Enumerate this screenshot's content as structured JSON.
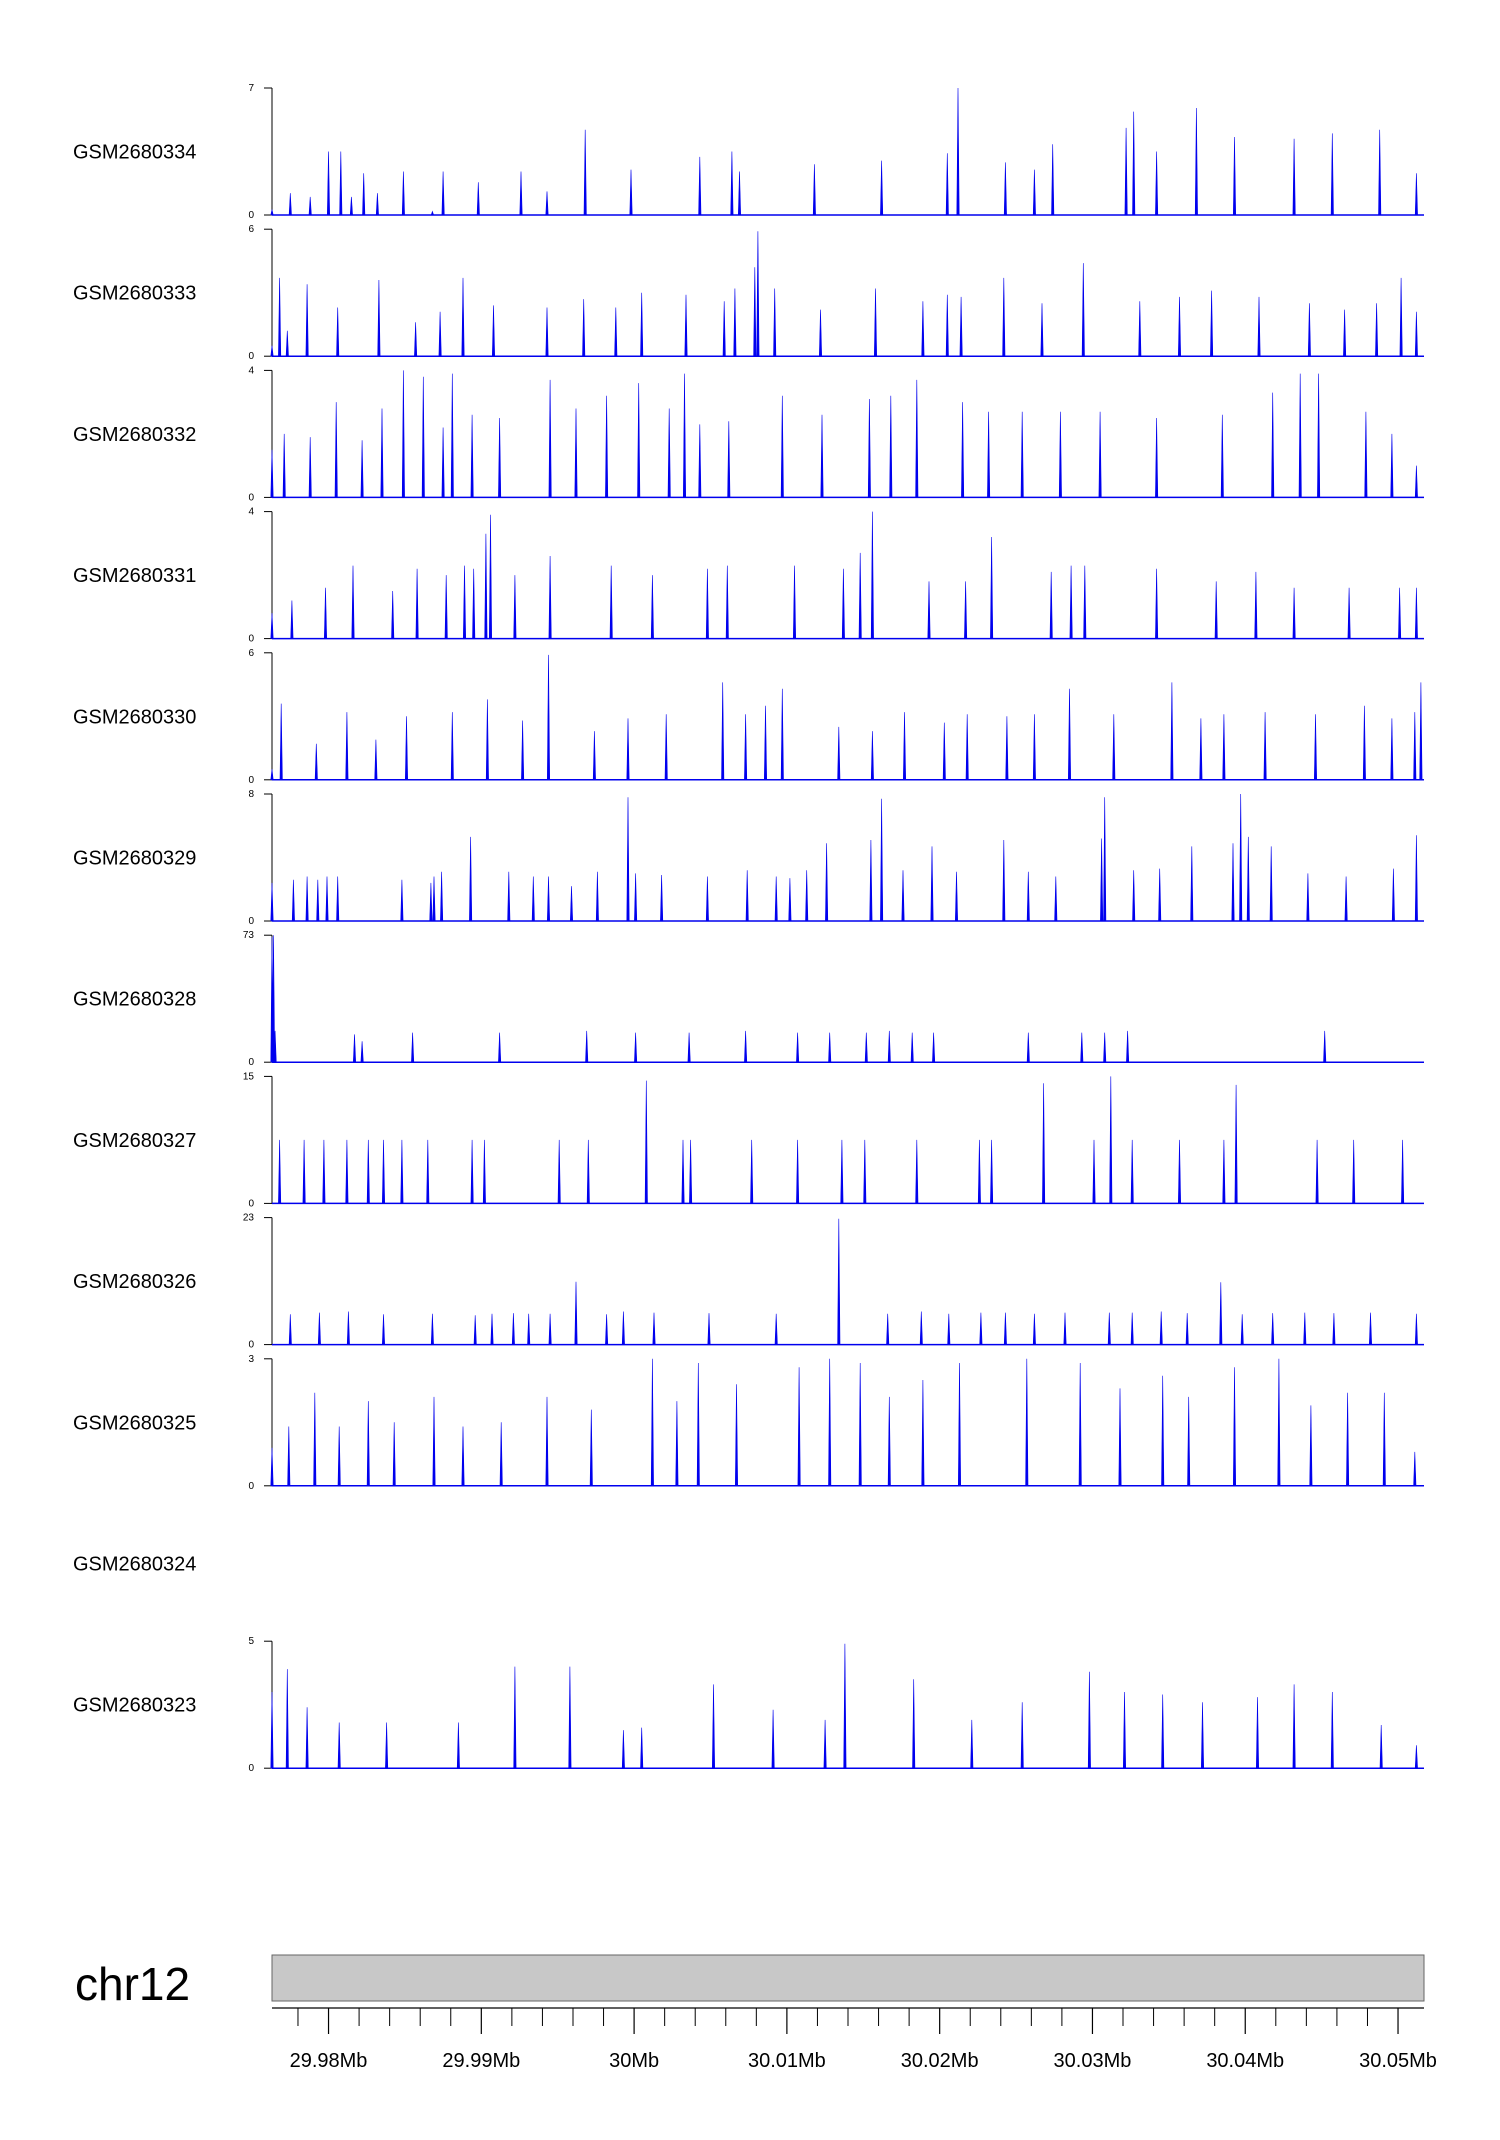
{
  "chart_data": {
    "type": "area",
    "chromosome": "chr12",
    "xlim": [
      29.9763,
      30.0517
    ],
    "axis_ticks": [
      {
        "value": 29.98,
        "label": "29.98Mb"
      },
      {
        "value": 29.99,
        "label": "29.99Mb"
      },
      {
        "value": 30.0,
        "label": "30Mb"
      },
      {
        "value": 30.01,
        "label": "30.01Mb"
      },
      {
        "value": 30.02,
        "label": "30.02Mb"
      },
      {
        "value": 30.03,
        "label": "30.03Mb"
      },
      {
        "value": 30.04,
        "label": "30.04Mb"
      },
      {
        "value": 30.05,
        "label": "30.05Mb"
      }
    ],
    "colors": {
      "fill": "#0000ee",
      "ideogram": "#c8c8c8",
      "axis": "#000000"
    },
    "tracks": [
      {
        "name": "GSM2680334",
        "ymax": 7,
        "ymax_label": "7",
        "ymin_label": "0",
        "x": [
          29.9763,
          29.9775,
          29.9788,
          29.98,
          29.9808,
          29.9815,
          29.9823,
          29.9832,
          29.9849,
          29.9868,
          29.9875,
          29.9898,
          29.9926,
          29.9943,
          29.9968,
          29.9998,
          30.0043,
          30.0064,
          30.0069,
          30.0118,
          30.0162,
          30.0205,
          30.0212,
          30.0243,
          30.0262,
          30.0274,
          30.0322,
          30.0327,
          30.0342,
          30.0368,
          30.0393,
          30.0432,
          30.0457,
          30.0488,
          30.0512
        ],
        "y": [
          0.3,
          1.2,
          1.0,
          3.5,
          3.5,
          1.0,
          2.3,
          1.2,
          2.4,
          0.2,
          2.4,
          1.8,
          2.4,
          1.3,
          4.7,
          2.5,
          3.2,
          3.5,
          2.4,
          2.8,
          3.0,
          3.4,
          7.0,
          2.9,
          2.5,
          3.9,
          4.8,
          5.7,
          3.5,
          5.9,
          4.3,
          4.2,
          4.5,
          4.7,
          2.3
        ]
      },
      {
        "name": "GSM2680333",
        "ymax": 6,
        "ymax_label": "6",
        "ymin_label": "0",
        "x": [
          29.9763,
          29.9768,
          29.9773,
          29.9786,
          29.9806,
          29.9833,
          29.9857,
          29.9873,
          29.9888,
          29.9908,
          29.9943,
          29.9967,
          29.9988,
          30.0005,
          30.0034,
          30.0059,
          30.0066,
          30.0079,
          30.0081,
          30.0092,
          30.0122,
          30.0158,
          30.0189,
          30.0205,
          30.0214,
          30.0242,
          30.0267,
          30.0294,
          30.0331,
          30.0357,
          30.0378,
          30.0409,
          30.0442,
          30.0465,
          30.0486,
          30.0502,
          30.0512
        ],
        "y": [
          0.5,
          3.7,
          1.2,
          3.4,
          2.3,
          3.6,
          1.6,
          2.1,
          3.7,
          2.4,
          2.3,
          2.7,
          2.3,
          3.0,
          2.9,
          2.6,
          3.2,
          4.2,
          5.9,
          3.2,
          2.2,
          3.2,
          2.6,
          2.9,
          2.8,
          3.7,
          2.5,
          4.4,
          2.6,
          2.8,
          3.1,
          2.8,
          2.5,
          2.2,
          2.5,
          3.7,
          2.1
        ]
      },
      {
        "name": "GSM2680332",
        "ymax": 4,
        "ymax_label": "4",
        "ymin_label": "0",
        "x": [
          29.9763,
          29.9771,
          29.9788,
          29.9805,
          29.9822,
          29.9835,
          29.9849,
          29.9862,
          29.9875,
          29.9881,
          29.9894,
          29.9912,
          29.9945,
          29.9962,
          29.9982,
          30.0003,
          30.0023,
          30.0033,
          30.0043,
          30.0062,
          30.0097,
          30.0123,
          30.0154,
          30.0168,
          30.0185,
          30.0215,
          30.0232,
          30.0254,
          30.0279,
          30.0305,
          30.0342,
          30.0385,
          30.0418,
          30.0436,
          30.0448,
          30.0479,
          30.0496,
          30.0512
        ],
        "y": [
          1.5,
          2.0,
          1.9,
          3.0,
          1.8,
          2.8,
          4.0,
          3.8,
          2.2,
          3.9,
          2.6,
          2.5,
          3.7,
          2.8,
          3.2,
          3.6,
          2.8,
          3.9,
          2.3,
          2.4,
          3.2,
          2.6,
          3.1,
          3.2,
          3.7,
          3.0,
          2.7,
          2.7,
          2.7,
          2.7,
          2.5,
          2.6,
          3.3,
          3.9,
          3.9,
          2.7,
          2.0,
          1.0
        ]
      },
      {
        "name": "GSM2680331",
        "ymax": 4,
        "ymax_label": "4",
        "ymin_label": "0",
        "x": [
          29.9763,
          29.9776,
          29.9798,
          29.9816,
          29.9842,
          29.9858,
          29.9877,
          29.9889,
          29.9895,
          29.9903,
          29.9906,
          29.9922,
          29.9945,
          29.9985,
          30.0012,
          30.0048,
          30.0061,
          30.0105,
          30.0137,
          30.0148,
          30.0156,
          30.0193,
          30.0217,
          30.0234,
          30.0273,
          30.0286,
          30.0295,
          30.0342,
          30.0381,
          30.0407,
          30.0432,
          30.0468,
          30.0501,
          30.0512
        ],
        "y": [
          0.8,
          1.2,
          1.6,
          2.3,
          1.5,
          2.2,
          2.0,
          2.3,
          2.2,
          3.3,
          3.9,
          2.0,
          2.6,
          2.3,
          2.0,
          2.2,
          2.3,
          2.3,
          2.2,
          2.7,
          4.0,
          1.8,
          1.8,
          3.2,
          2.1,
          2.3,
          2.3,
          2.2,
          1.8,
          2.1,
          1.6,
          1.6,
          1.6,
          1.6
        ]
      },
      {
        "name": "GSM2680330",
        "ymax": 6,
        "ymax_label": "6",
        "ymin_label": "0",
        "x": [
          29.9763,
          29.9769,
          29.9792,
          29.9812,
          29.9831,
          29.9851,
          29.9881,
          29.9904,
          29.9927,
          29.9944,
          29.9974,
          29.9996,
          30.0021,
          30.0058,
          30.0073,
          30.0086,
          30.0097,
          30.0134,
          30.0156,
          30.0177,
          30.0203,
          30.0218,
          30.0244,
          30.0262,
          30.0285,
          30.0314,
          30.0352,
          30.0371,
          30.0386,
          30.0413,
          30.0446,
          30.0478,
          30.0496,
          30.0511,
          30.0515
        ],
        "y": [
          0.5,
          3.6,
          1.7,
          3.2,
          1.9,
          3.0,
          3.2,
          3.8,
          2.8,
          5.9,
          2.3,
          2.9,
          3.1,
          4.6,
          3.1,
          3.5,
          4.3,
          2.5,
          2.3,
          3.2,
          2.7,
          3.1,
          3.0,
          3.1,
          4.3,
          3.1,
          4.6,
          2.9,
          3.1,
          3.2,
          3.1,
          3.5,
          2.9,
          3.2,
          4.6
        ]
      },
      {
        "name": "GSM2680329",
        "ymax": 8,
        "ymax_label": "8",
        "ymin_label": "0",
        "x": [
          29.9763,
          29.9777,
          29.9786,
          29.9793,
          29.9799,
          29.9806,
          29.9828,
          29.9848,
          29.9867,
          29.9869,
          29.9874,
          29.9893,
          29.9918,
          29.9934,
          29.9944,
          29.9959,
          29.9976,
          29.9996,
          30.0001,
          30.0018,
          30.0035,
          30.0048,
          30.0074,
          30.0093,
          30.0102,
          30.0113,
          30.0126,
          30.0155,
          30.0162,
          30.0176,
          30.0195,
          30.0211,
          30.0242,
          30.0258,
          30.0276,
          30.0306,
          30.0308,
          30.0327,
          30.0344,
          30.0365,
          30.0392,
          30.0397,
          30.0402,
          30.0417,
          30.0441,
          30.0466,
          30.0497,
          30.0512
        ],
        "y": [
          2.4,
          2.6,
          2.8,
          2.6,
          2.8,
          2.8,
          0.0,
          2.6,
          2.4,
          2.8,
          3.1,
          5.3,
          3.1,
          2.8,
          2.8,
          2.2,
          3.1,
          7.8,
          3.0,
          2.9,
          0.0,
          2.8,
          3.2,
          2.8,
          2.7,
          3.2,
          4.9,
          5.1,
          7.7,
          3.2,
          4.7,
          3.1,
          5.1,
          3.1,
          2.8,
          5.2,
          7.8,
          3.2,
          3.3,
          4.7,
          4.9,
          8.0,
          5.3,
          4.7,
          3.0,
          2.8,
          3.3,
          5.4
        ]
      },
      {
        "name": "GSM2680328",
        "ymax": 73,
        "ymax_label": "73",
        "ymin_label": "0",
        "x": [
          29.9763,
          29.9764,
          29.9765,
          29.9791,
          29.9817,
          29.9822,
          29.9855,
          29.9875,
          29.9912,
          29.993,
          29.9969,
          29.9983,
          30.0001,
          30.0036,
          30.0073,
          30.0107,
          30.0128,
          30.0152,
          30.0167,
          30.0182,
          30.0196,
          30.0224,
          30.0258,
          30.0293,
          30.0308,
          30.0323,
          30.0387,
          30.0452,
          30.0484
        ],
        "y": [
          72.0,
          73.0,
          18.0,
          0.0,
          16.0,
          12.0,
          17.0,
          0.0,
          17.0,
          0.0,
          18.0,
          0.0,
          17.0,
          17.0,
          18.0,
          17.0,
          17.0,
          17.0,
          18.0,
          17.0,
          17.0,
          0.0,
          17.0,
          17.0,
          17.0,
          18.0,
          0.0,
          18.0,
          0.0
        ]
      },
      {
        "name": "GSM2680327",
        "ymax": 15,
        "ymax_label": "15",
        "ymin_label": "0",
        "x": [
          29.9768,
          29.9784,
          29.9797,
          29.9812,
          29.9826,
          29.9836,
          29.9848,
          29.9865,
          29.9894,
          29.9902,
          29.9951,
          29.997,
          30.0008,
          30.0032,
          30.0037,
          30.0077,
          30.0107,
          30.0136,
          30.0151,
          30.0185,
          30.0226,
          30.0234,
          30.0268,
          30.0301,
          30.0312,
          30.0326,
          30.0357,
          30.0386,
          30.0394,
          30.0447,
          30.0471,
          30.0503
        ],
        "y": [
          7.5,
          7.5,
          7.5,
          7.5,
          7.5,
          7.5,
          7.5,
          7.5,
          7.5,
          7.5,
          7.5,
          7.5,
          14.5,
          7.5,
          7.5,
          7.5,
          7.5,
          7.5,
          7.5,
          7.5,
          7.5,
          7.5,
          14.2,
          7.5,
          15.0,
          7.5,
          7.5,
          7.5,
          14.0,
          7.5,
          7.5,
          7.5
        ]
      },
      {
        "name": "GSM2680326",
        "ymax": 23,
        "ymax_label": "23",
        "ymin_label": "0",
        "x": [
          29.9775,
          29.9794,
          29.9813,
          29.9836,
          29.9868,
          29.9896,
          29.9907,
          29.9921,
          29.9931,
          29.9945,
          29.9962,
          29.9982,
          29.9993,
          30.0006,
          30.0013,
          30.0049,
          30.0093,
          30.0134,
          30.0166,
          30.0188,
          30.0206,
          30.0227,
          30.0243,
          30.0262,
          30.0282,
          30.0311,
          30.0326,
          30.0345,
          30.0362,
          30.0384,
          30.0398,
          30.0418,
          30.0439,
          30.0458,
          30.0482,
          30.0512
        ],
        "y": [
          5.5,
          5.8,
          6.0,
          5.5,
          5.6,
          5.3,
          5.6,
          5.7,
          5.6,
          5.6,
          11.4,
          5.5,
          6.0,
          0.0,
          5.8,
          5.7,
          5.6,
          22.8,
          5.6,
          6.0,
          5.6,
          5.8,
          5.8,
          5.6,
          5.8,
          5.8,
          5.8,
          6.0,
          5.7,
          11.3,
          5.5,
          5.7,
          5.8,
          5.7,
          5.8,
          5.6
        ]
      },
      {
        "name": "GSM2680325",
        "ymax": 3,
        "ymax_label": "3",
        "ymin_label": "0",
        "x": [
          29.9763,
          29.9774,
          29.9791,
          29.9807,
          29.9826,
          29.9843,
          29.9869,
          29.9888,
          29.9913,
          29.9943,
          29.9972,
          30.0012,
          30.0028,
          30.0042,
          30.0067,
          30.0108,
          30.0128,
          30.0148,
          30.0167,
          30.0189,
          30.0213,
          30.0257,
          30.0292,
          30.0318,
          30.0346,
          30.0363,
          30.0393,
          30.0422,
          30.0443,
          30.0467,
          30.0491,
          30.0511
        ],
        "y": [
          0.9,
          1.4,
          2.2,
          1.4,
          2.0,
          1.5,
          2.1,
          1.4,
          1.5,
          2.1,
          1.8,
          3.0,
          2.0,
          2.9,
          2.4,
          2.8,
          3.0,
          2.9,
          2.1,
          2.5,
          2.9,
          3.0,
          2.9,
          2.3,
          2.6,
          2.1,
          2.8,
          3.0,
          1.9,
          2.2,
          2.2,
          0.8
        ]
      },
      {
        "name": "GSM2680324",
        "ymax": null,
        "ymax_label": "",
        "ymin_label": "",
        "x": [],
        "y": []
      },
      {
        "name": "GSM2680323",
        "ymax": 5,
        "ymax_label": "5",
        "ymin_label": "0",
        "x": [
          29.9763,
          29.9773,
          29.9786,
          29.9807,
          29.9838,
          29.9885,
          29.9922,
          29.9958,
          29.9993,
          30.0005,
          30.0052,
          30.0091,
          30.0125,
          30.0138,
          30.0183,
          30.0221,
          30.0254,
          30.0298,
          30.0321,
          30.0346,
          30.0372,
          30.0408,
          30.0432,
          30.0457,
          30.0489,
          30.0512
        ],
        "y": [
          3.0,
          3.9,
          2.4,
          1.8,
          1.8,
          1.8,
          4.0,
          4.0,
          1.5,
          1.6,
          3.3,
          2.3,
          1.9,
          4.9,
          3.5,
          1.9,
          2.6,
          3.8,
          3.0,
          2.9,
          2.6,
          2.8,
          3.3,
          3.0,
          1.7,
          0.9
        ]
      }
    ]
  }
}
